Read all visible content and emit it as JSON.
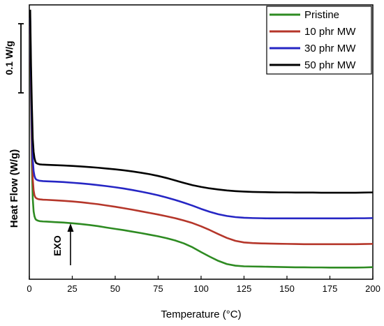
{
  "chart_data": {
    "type": "line",
    "title": "",
    "xlabel": "Temperature (°C)",
    "ylabel": "Heat Flow (W/g)",
    "xlim": [
      0,
      200
    ],
    "x_ticks": [
      "0",
      "25",
      "50",
      "75",
      "100",
      "125",
      "150",
      "175",
      "200"
    ],
    "grid": false,
    "legend_position": "top-right",
    "scale_bar_label": "0.1 W/g",
    "exo_label": "EXO",
    "exo_direction": "up",
    "series": [
      {
        "name": "Pristine",
        "color": "#2e8b22",
        "x": [
          0.5,
          1,
          1.5,
          2,
          2.5,
          3,
          3.5,
          4,
          5,
          6,
          8,
          10,
          15,
          20,
          25,
          30,
          35,
          40,
          45,
          50,
          55,
          60,
          65,
          70,
          75,
          80,
          85,
          90,
          95,
          100,
          105,
          110,
          115,
          120,
          125,
          130,
          135,
          140,
          145,
          150,
          155,
          160,
          165,
          170,
          175,
          180,
          185,
          190,
          195,
          200
        ],
        "y": [
          1.4,
          1.0,
          0.58,
          0.38,
          0.3,
          0.27,
          0.255,
          0.248,
          0.243,
          0.24,
          0.238,
          0.237,
          0.234,
          0.231,
          0.227,
          0.222,
          0.216,
          0.209,
          0.2,
          0.192,
          0.184,
          0.175,
          0.166,
          0.156,
          0.146,
          0.134,
          0.12,
          0.102,
          0.078,
          0.048,
          0.02,
          -0.006,
          -0.026,
          -0.036,
          -0.04,
          -0.041,
          -0.042,
          -0.043,
          -0.044,
          -0.045,
          -0.046,
          -0.046,
          -0.047,
          -0.047,
          -0.048,
          -0.048,
          -0.048,
          -0.048,
          -0.047,
          -0.045
        ]
      },
      {
        "name": "10 phr MW",
        "color": "#b5362a",
        "x": [
          0.5,
          1,
          1.5,
          2,
          2.5,
          3,
          3.5,
          4,
          5,
          6,
          8,
          10,
          15,
          20,
          25,
          30,
          35,
          40,
          45,
          50,
          55,
          60,
          65,
          70,
          75,
          80,
          85,
          90,
          95,
          100,
          105,
          110,
          115,
          120,
          125,
          130,
          135,
          140,
          145,
          150,
          155,
          160,
          165,
          170,
          175,
          180,
          185,
          190,
          195,
          200
        ],
        "y": [
          1.45,
          1.05,
          0.7,
          0.5,
          0.43,
          0.4,
          0.388,
          0.382,
          0.377,
          0.375,
          0.373,
          0.372,
          0.369,
          0.366,
          0.362,
          0.357,
          0.351,
          0.345,
          0.337,
          0.329,
          0.32,
          0.311,
          0.301,
          0.291,
          0.281,
          0.27,
          0.258,
          0.244,
          0.228,
          0.208,
          0.185,
          0.16,
          0.136,
          0.118,
          0.108,
          0.104,
          0.102,
          0.101,
          0.1,
          0.099,
          0.098,
          0.097,
          0.097,
          0.097,
          0.097,
          0.097,
          0.097,
          0.097,
          0.098,
          0.099
        ]
      },
      {
        "name": "30 phr MW",
        "color": "#2626c4",
        "x": [
          0.5,
          1,
          1.5,
          2,
          2.5,
          3,
          3.5,
          4,
          5,
          6,
          8,
          10,
          15,
          20,
          25,
          30,
          35,
          40,
          45,
          50,
          55,
          60,
          65,
          70,
          75,
          80,
          85,
          90,
          95,
          100,
          105,
          110,
          115,
          120,
          125,
          130,
          135,
          140,
          145,
          150,
          155,
          160,
          165,
          170,
          175,
          180,
          185,
          190,
          195,
          200
        ],
        "y": [
          1.5,
          1.12,
          0.82,
          0.62,
          0.55,
          0.52,
          0.505,
          0.498,
          0.493,
          0.49,
          0.488,
          0.487,
          0.485,
          0.482,
          0.478,
          0.474,
          0.469,
          0.463,
          0.457,
          0.45,
          0.442,
          0.433,
          0.423,
          0.412,
          0.4,
          0.386,
          0.371,
          0.354,
          0.336,
          0.316,
          0.298,
          0.283,
          0.272,
          0.265,
          0.261,
          0.259,
          0.258,
          0.257,
          0.257,
          0.257,
          0.257,
          0.257,
          0.257,
          0.257,
          0.257,
          0.257,
          0.257,
          0.258,
          0.258,
          0.259
        ]
      },
      {
        "name": "50 phr MW",
        "color": "#000000",
        "x": [
          0.5,
          1,
          1.5,
          2,
          2.5,
          3,
          3.5,
          4,
          5,
          6,
          8,
          10,
          15,
          20,
          25,
          30,
          35,
          40,
          45,
          50,
          55,
          60,
          65,
          70,
          75,
          80,
          85,
          90,
          95,
          100,
          105,
          110,
          115,
          120,
          125,
          130,
          135,
          140,
          145,
          150,
          155,
          160,
          165,
          170,
          175,
          180,
          185,
          190,
          195,
          200
        ],
        "y": [
          1.55,
          1.2,
          0.95,
          0.75,
          0.67,
          0.63,
          0.61,
          0.6,
          0.595,
          0.592,
          0.59,
          0.589,
          0.587,
          0.585,
          0.582,
          0.579,
          0.575,
          0.571,
          0.566,
          0.561,
          0.555,
          0.548,
          0.54,
          0.531,
          0.52,
          0.507,
          0.492,
          0.477,
          0.463,
          0.452,
          0.443,
          0.436,
          0.43,
          0.426,
          0.423,
          0.421,
          0.42,
          0.419,
          0.418,
          0.418,
          0.417,
          0.417,
          0.417,
          0.416,
          0.416,
          0.416,
          0.416,
          0.416,
          0.417,
          0.418
        ]
      }
    ]
  }
}
